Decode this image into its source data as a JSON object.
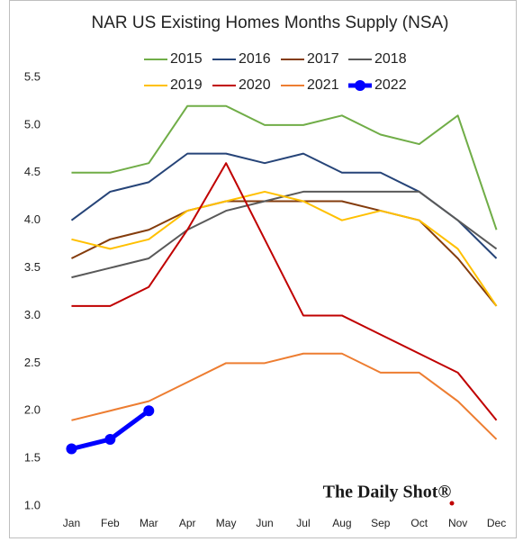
{
  "chart_data": {
    "type": "line",
    "title": "NAR US Existing Homes Months Supply (NSA)",
    "watermark": "The Daily Shot®",
    "categories": [
      "Jan",
      "Feb",
      "Mar",
      "Apr",
      "May",
      "Jun",
      "Jul",
      "Aug",
      "Sep",
      "Oct",
      "Nov",
      "Dec"
    ],
    "ylim": [
      1.0,
      5.5
    ],
    "yticks": [
      {
        "value": 1.0,
        "label": "1.0"
      },
      {
        "value": 1.5,
        "label": "1.5"
      },
      {
        "value": 2.0,
        "label": "2.0"
      },
      {
        "value": 2.5,
        "label": "2.5"
      },
      {
        "value": 3.0,
        "label": "3.0"
      },
      {
        "value": 3.5,
        "label": "3.5"
      },
      {
        "value": 4.0,
        "label": "4.0"
      },
      {
        "value": 4.5,
        "label": "4.5"
      },
      {
        "value": 5.0,
        "label": "5.0"
      },
      {
        "value": 5.5,
        "label": "5.5"
      }
    ],
    "grid": false,
    "legend": "top",
    "series": [
      {
        "name": "2015",
        "color": "#70ad47",
        "values": [
          4.5,
          4.5,
          4.6,
          5.2,
          5.2,
          5.0,
          5.0,
          5.1,
          4.9,
          4.8,
          5.1,
          3.9
        ]
      },
      {
        "name": "2016",
        "color": "#264478",
        "values": [
          4.0,
          4.3,
          4.4,
          4.7,
          4.7,
          4.6,
          4.7,
          4.5,
          4.5,
          4.3,
          4.0,
          3.6
        ]
      },
      {
        "name": "2017",
        "color": "#843c0c",
        "values": [
          3.6,
          3.8,
          3.9,
          4.1,
          4.2,
          4.2,
          4.2,
          4.2,
          4.1,
          4.0,
          3.6,
          3.1
        ]
      },
      {
        "name": "2018",
        "color": "#595959",
        "values": [
          3.4,
          3.5,
          3.6,
          3.9,
          4.1,
          4.2,
          4.3,
          4.3,
          4.3,
          4.3,
          4.0,
          3.7
        ]
      },
      {
        "name": "2019",
        "color": "#ffc000",
        "values": [
          3.8,
          3.7,
          3.8,
          4.1,
          4.2,
          4.3,
          4.2,
          4.0,
          4.1,
          4.0,
          3.7,
          3.1
        ]
      },
      {
        "name": "2020",
        "color": "#c00000",
        "values": [
          3.1,
          3.1,
          3.3,
          3.9,
          4.6,
          3.8,
          3.0,
          3.0,
          2.8,
          2.6,
          2.4,
          1.9
        ]
      },
      {
        "name": "2021",
        "color": "#ed7d31",
        "values": [
          1.9,
          2.0,
          2.1,
          2.3,
          2.5,
          2.5,
          2.6,
          2.6,
          2.4,
          2.4,
          2.1,
          1.7
        ]
      },
      {
        "name": "2022",
        "color": "#0000ff",
        "marker": true,
        "values": [
          1.6,
          1.7,
          2.0,
          null,
          null,
          null,
          null,
          null,
          null,
          null,
          null,
          null
        ]
      }
    ]
  }
}
